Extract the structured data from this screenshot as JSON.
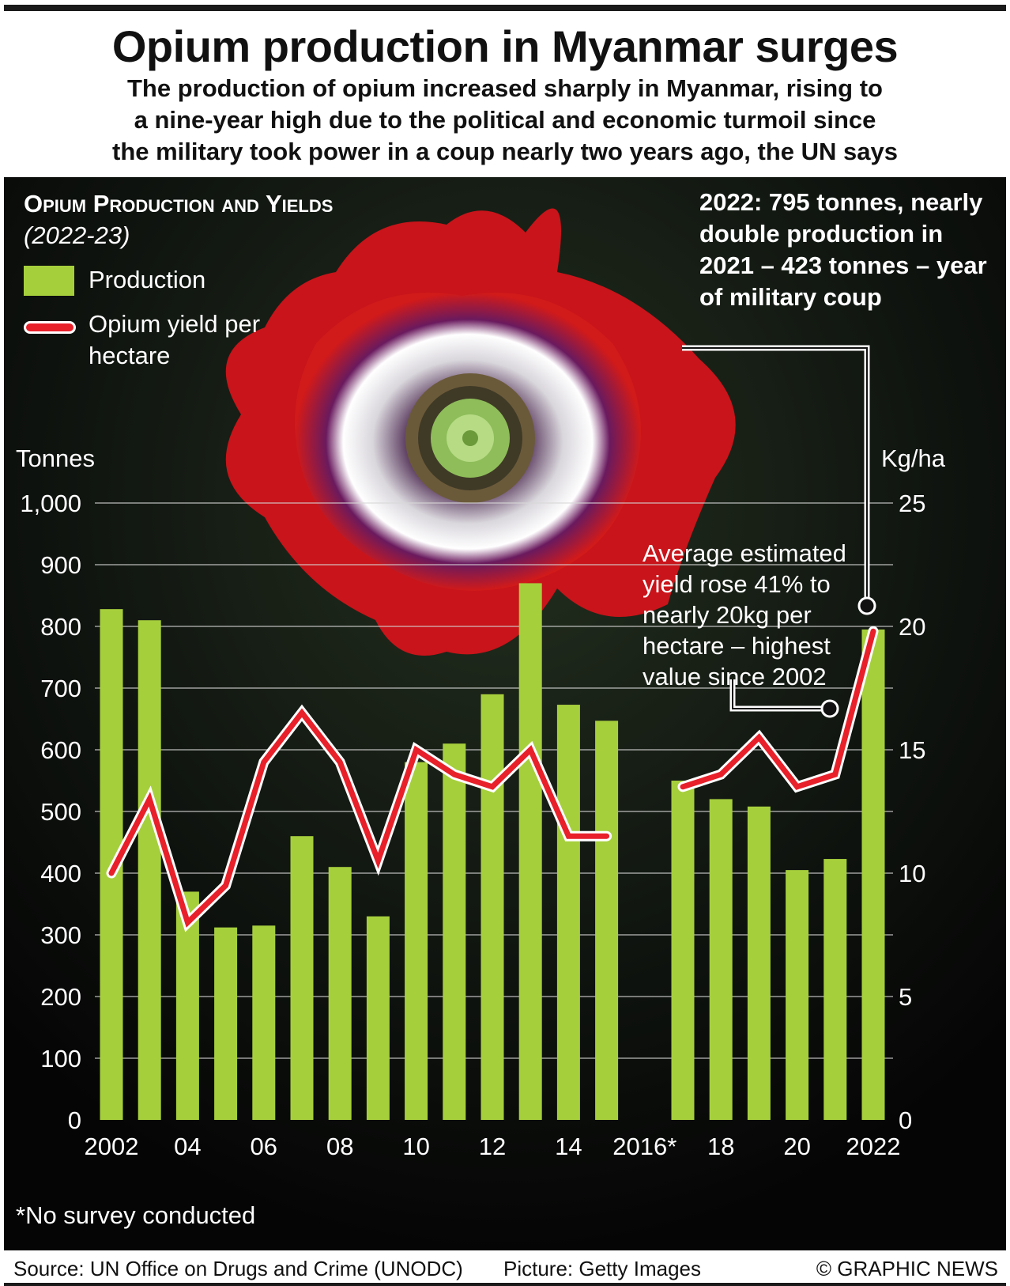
{
  "header": {
    "title": "Opium production in Myanmar surges",
    "subtitle_lines": [
      "The production of opium increased sharply in Myanmar, rising to",
      "a nine-year high due to the political and economic turmoil since",
      "the military took power in a coup nearly two years ago, the UN says"
    ]
  },
  "legend": {
    "title": "Opium Production and Yields",
    "title_years": "(2022-23)",
    "production_label": "Production",
    "yield_label": "Opium yield per hectare",
    "production_color": "#a6cf3c",
    "yield_color": "#e8202a"
  },
  "annotations": {
    "production_note": "2022: 795 tonnes, nearly double production in 2021 – 423 tonnes – year of military coup",
    "yield_note": "Average estimated yield rose 41% to nearly 20kg per hectare – highest value since 2002"
  },
  "footnote": "*No survey conducted",
  "footer": {
    "source": "Source: UN Office on Drugs and Crime (UNODC)",
    "picture": "Picture: Getty Images",
    "copyright": "© GRAPHIC NEWS"
  },
  "chart_data": {
    "type": "bar",
    "title": "Opium Production and Yields",
    "x": [
      2002,
      2003,
      2004,
      2005,
      2006,
      2007,
      2008,
      2009,
      2010,
      2011,
      2012,
      2013,
      2014,
      2015,
      2016,
      2017,
      2018,
      2019,
      2020,
      2021,
      2022
    ],
    "x_tick_labels": [
      "2002",
      "04",
      "06",
      "08",
      "10",
      "12",
      "14",
      "2016*",
      "18",
      "20",
      "2022"
    ],
    "series": [
      {
        "name": "Production",
        "type": "bar",
        "axis": "left",
        "unit": "Tonnes",
        "values": [
          828,
          810,
          370,
          312,
          315,
          460,
          410,
          330,
          580,
          610,
          690,
          870,
          673,
          647,
          null,
          550,
          520,
          508,
          405,
          423,
          795
        ],
        "color": "#a6cf3c"
      },
      {
        "name": "Opium yield per hectare",
        "type": "line",
        "axis": "right",
        "unit": "Kg/ha",
        "values": [
          10.0,
          13.0,
          8.0,
          9.5,
          14.5,
          16.5,
          14.5,
          10.5,
          15.0,
          14.0,
          13.5,
          15.0,
          11.5,
          11.5,
          null,
          13.5,
          14.0,
          15.5,
          13.5,
          14.0,
          19.8
        ],
        "color": "#e8202a"
      }
    ],
    "ylabel_left": "Tonnes",
    "ylabel_right": "Kg/ha",
    "ylim_left": [
      0,
      1000
    ],
    "ylim_right": [
      0,
      25
    ],
    "yticks_left": [
      "0",
      "100",
      "200",
      "300",
      "400",
      "500",
      "600",
      "700",
      "800",
      "900",
      "1,000"
    ],
    "yticks_right": [
      "0",
      "5",
      "10",
      "15",
      "20",
      "25"
    ],
    "grid": true,
    "legend_position": "top-left"
  }
}
